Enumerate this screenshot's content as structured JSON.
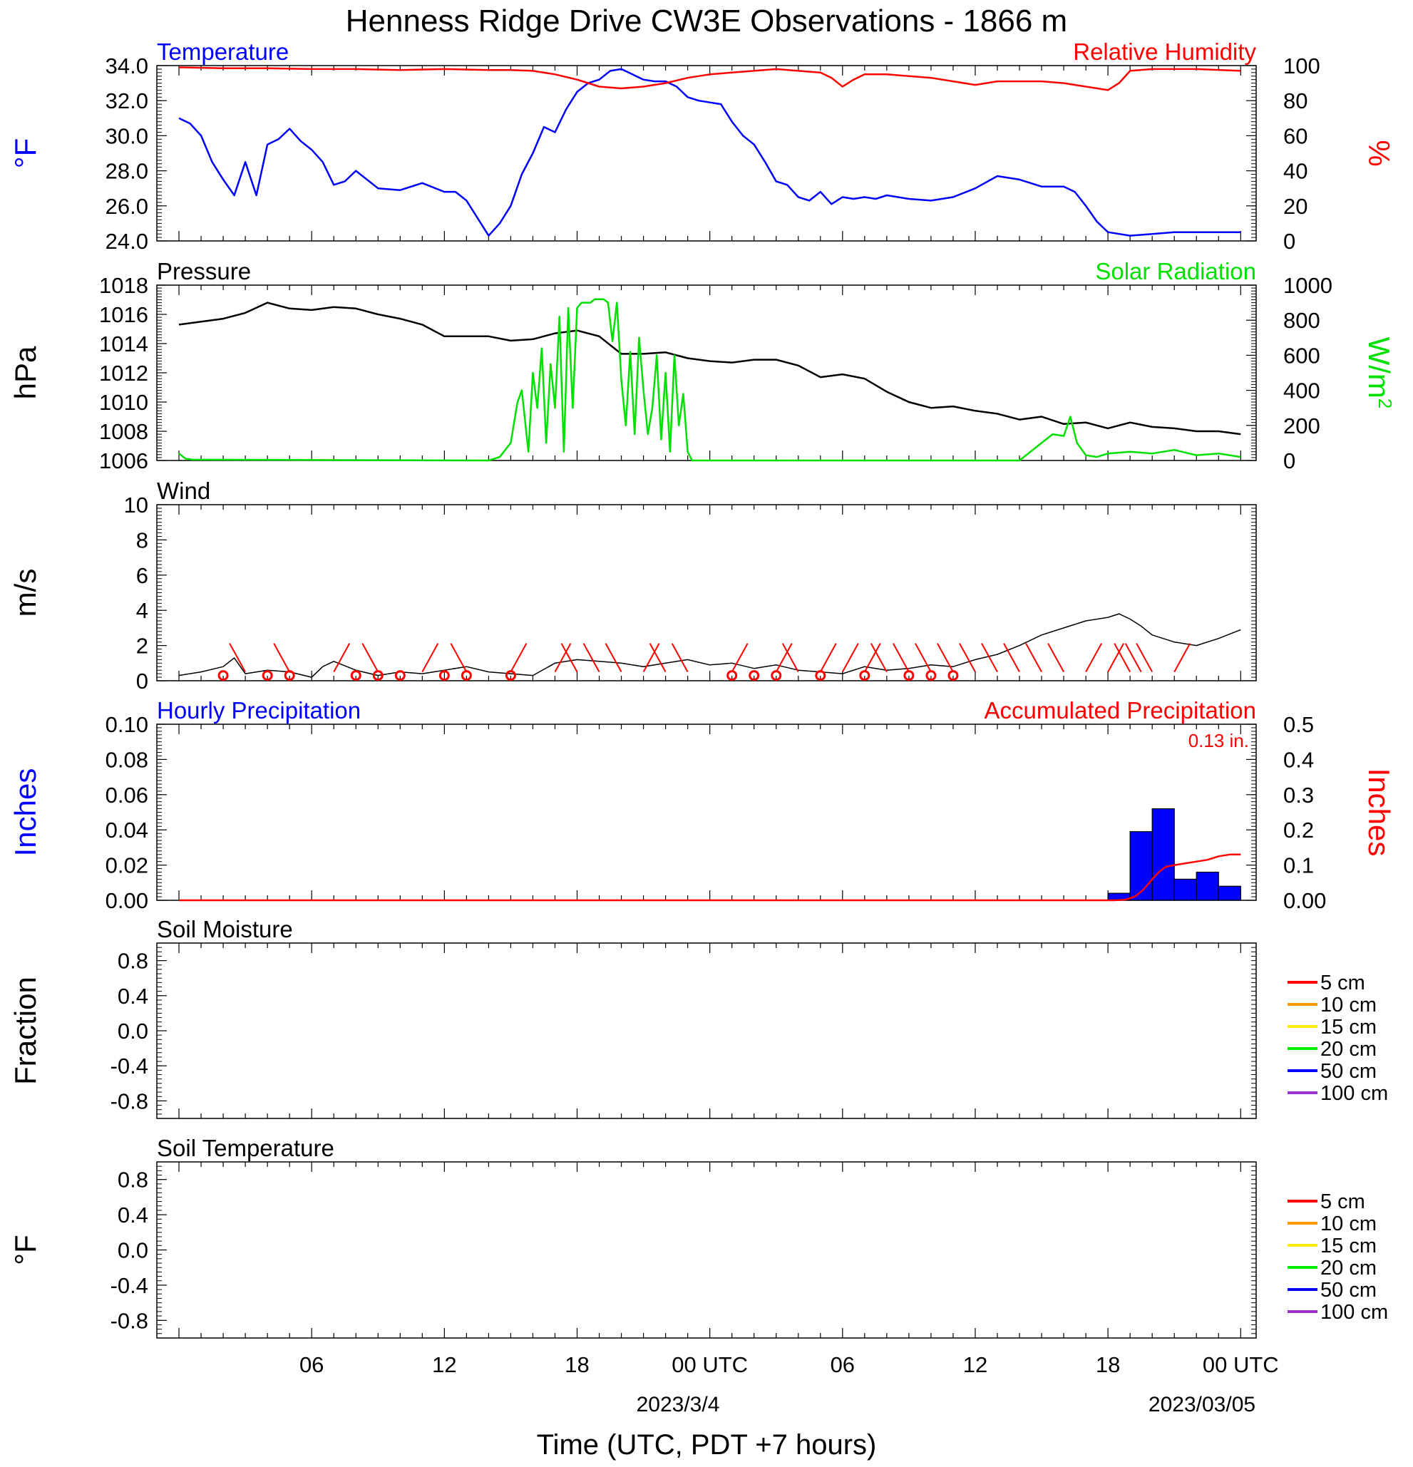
{
  "title": "Henness Ridge Drive CW3E Observations - 1866 m",
  "colors": {
    "blue": "#0000ff",
    "red": "#ff0000",
    "green": "#00e000",
    "black": "#000000"
  },
  "time_axis": {
    "ticks": [
      "06",
      "12",
      "18",
      "00 UTC",
      "06",
      "12",
      "18",
      "00 UTC"
    ],
    "tick_hours": [
      6,
      12,
      18,
      24,
      30,
      36,
      42,
      48
    ],
    "dates": [
      "2023/3/4",
      "2023/03/05"
    ],
    "label": "Time (UTC, PDT +7 hours)"
  },
  "chart_data": [
    {
      "type": "line",
      "panel": "temperature_humidity",
      "title_left": "Temperature",
      "title_right": "Relative Humidity",
      "ylabel_left": "°F",
      "ylabel_right": "%",
      "ylim_left": [
        24,
        34
      ],
      "ylim_right": [
        0,
        100
      ],
      "yticks_left": [
        "24.0",
        "26.0",
        "28.0",
        "30.0",
        "32.0",
        "34.0"
      ],
      "yticks_right": [
        "0",
        "20",
        "40",
        "60",
        "80",
        "100"
      ],
      "series": [
        {
          "name": "Temperature",
          "axis": "left",
          "color": "#0000ff",
          "x": [
            0,
            0.5,
            1,
            1.5,
            2,
            2.5,
            3,
            3.5,
            4,
            4.5,
            5,
            5.5,
            6,
            6.5,
            7,
            7.5,
            8,
            9,
            10,
            11,
            12,
            12.5,
            13,
            13.5,
            14,
            14.5,
            15,
            15.5,
            16,
            16.5,
            17,
            17.5,
            18,
            18.5,
            19,
            19.5,
            20,
            20.5,
            21,
            21.5,
            22,
            22.5,
            23,
            23.5,
            24,
            24.5,
            25,
            25.5,
            26,
            26.5,
            27,
            27.5,
            28,
            28.5,
            29,
            29.5,
            30,
            30.5,
            31,
            31.5,
            32,
            33,
            34,
            35,
            36,
            37,
            38,
            39,
            40,
            40.5,
            41,
            41.5,
            42,
            43,
            44,
            45,
            45.5,
            46,
            46.5,
            47,
            47.5,
            48
          ],
          "y": [
            31,
            30.7,
            30,
            28.5,
            27.5,
            26.6,
            28.5,
            26.6,
            29.5,
            29.8,
            30.4,
            29.7,
            29.2,
            28.5,
            27.2,
            27.4,
            28,
            27,
            26.9,
            27.3,
            26.8,
            26.8,
            26.3,
            25.3,
            24.3,
            25,
            26,
            27.8,
            29,
            30.5,
            30.2,
            31.5,
            32.5,
            33,
            33.2,
            33.7,
            33.8,
            33.5,
            33.2,
            33.1,
            33.1,
            32.8,
            32.2,
            32,
            31.9,
            31.8,
            30.8,
            30,
            29.5,
            28.5,
            27.4,
            27.2,
            26.5,
            26.3,
            26.8,
            26.1,
            26.5,
            26.4,
            26.5,
            26.4,
            26.6,
            26.4,
            26.3,
            26.5,
            27,
            27.7,
            27.5,
            27.1,
            27.1,
            26.8,
            26,
            25.1,
            24.5,
            24.3,
            24.4,
            24.5,
            24.5,
            24.5,
            24.5,
            24.5,
            24.5,
            24.5
          ]
        },
        {
          "name": "Relative Humidity",
          "axis": "right",
          "color": "#ff0000",
          "x": [
            0,
            2,
            4,
            6,
            8,
            10,
            12,
            14,
            15,
            16,
            17,
            18,
            19,
            20,
            21,
            22,
            23,
            24,
            25,
            26,
            27,
            28,
            29,
            29.5,
            30,
            30.5,
            31,
            32,
            33,
            34,
            35,
            36,
            37,
            38,
            39,
            40,
            41,
            42,
            42.5,
            43,
            44,
            46,
            48
          ],
          "y": [
            99,
            98.5,
            98.5,
            98,
            98,
            97.5,
            98,
            97.5,
            97.5,
            97,
            95,
            92,
            88,
            87,
            88,
            90,
            93,
            95,
            96,
            97,
            98,
            97,
            96,
            93,
            88,
            92,
            95,
            95,
            94,
            93,
            91,
            89,
            91,
            91,
            91,
            90,
            88,
            86,
            90,
            97,
            98,
            98,
            97
          ]
        }
      ]
    },
    {
      "type": "line",
      "panel": "pressure_solar",
      "title_left": "Pressure",
      "title_right": "Solar Radiation",
      "ylabel_left": "hPa",
      "ylabel_right": "W/m",
      "ylabel_right_sup": "2",
      "ylim_left": [
        1006,
        1018
      ],
      "ylim_right": [
        0,
        1000
      ],
      "yticks_left": [
        "1006",
        "1008",
        "1010",
        "1012",
        "1014",
        "1016",
        "1018"
      ],
      "yticks_right": [
        "0",
        "200",
        "400",
        "600",
        "800",
        "1000"
      ],
      "series": [
        {
          "name": "Pressure",
          "axis": "left",
          "color": "#000000",
          "x": [
            0,
            1,
            2,
            3,
            4,
            5,
            6,
            7,
            8,
            9,
            10,
            11,
            12,
            13,
            14,
            15,
            16,
            17,
            18,
            19,
            20,
            21,
            22,
            23,
            24,
            25,
            26,
            27,
            28,
            29,
            30,
            31,
            32,
            33,
            34,
            35,
            36,
            37,
            38,
            39,
            40,
            41,
            42,
            43,
            44,
            45,
            46,
            47,
            48
          ],
          "y": [
            1015.3,
            1015.5,
            1015.7,
            1016.1,
            1016.8,
            1016.4,
            1016.3,
            1016.5,
            1016.4,
            1016,
            1015.7,
            1015.3,
            1014.5,
            1014.5,
            1014.5,
            1014.2,
            1014.3,
            1014.7,
            1014.9,
            1014.5,
            1013.3,
            1013.3,
            1013.4,
            1013,
            1012.8,
            1012.7,
            1012.9,
            1012.9,
            1012.5,
            1011.7,
            1011.9,
            1011.6,
            1010.7,
            1010,
            1009.6,
            1009.7,
            1009.4,
            1009.2,
            1008.8,
            1009,
            1008.5,
            1008.6,
            1008.2,
            1008.6,
            1008.3,
            1008.2,
            1008,
            1008,
            1007.8
          ]
        },
        {
          "name": "Solar Radiation",
          "axis": "right",
          "color": "#00e000",
          "x": [
            0,
            0.3,
            0.6,
            14,
            14.5,
            15,
            15.3,
            15.5,
            15.8,
            16,
            16.2,
            16.4,
            16.6,
            16.8,
            17,
            17.2,
            17.4,
            17.6,
            17.8,
            18,
            18.2,
            18.4,
            18.6,
            18.8,
            19,
            19.2,
            19.4,
            19.6,
            19.8,
            20,
            20.2,
            20.4,
            20.6,
            20.8,
            21,
            21.2,
            21.4,
            21.6,
            21.8,
            22,
            22.2,
            22.4,
            22.6,
            22.8,
            23,
            23.2,
            23.4,
            23.6,
            24,
            24.5,
            30,
            37,
            38,
            39,
            39.5,
            40,
            40.3,
            40.6,
            41,
            41.5,
            42,
            43,
            44,
            45,
            46,
            47,
            48
          ],
          "y": [
            40,
            10,
            5,
            0,
            20,
            100,
            330,
            400,
            50,
            500,
            300,
            640,
            100,
            550,
            300,
            820,
            50,
            870,
            300,
            870,
            900,
            900,
            900,
            920,
            920,
            920,
            900,
            680,
            900,
            460,
            200,
            620,
            150,
            700,
            400,
            150,
            300,
            600,
            120,
            500,
            50,
            600,
            200,
            380,
            50,
            0,
            0,
            0,
            0,
            0,
            0,
            0,
            0,
            100,
            150,
            140,
            250,
            100,
            30,
            20,
            40,
            50,
            40,
            60,
            30,
            40,
            20
          ]
        }
      ]
    },
    {
      "type": "line",
      "panel": "wind",
      "title_left": "Wind",
      "ylabel_left": "m/s",
      "ylim_left": [
        0,
        10
      ],
      "yticks_left": [
        "0",
        "2",
        "4",
        "6",
        "8",
        "10"
      ],
      "series": [
        {
          "name": "Wind",
          "axis": "left",
          "color": "#000000",
          "x": [
            0,
            1,
            2,
            2.5,
            3,
            4,
            5,
            6,
            6.5,
            7,
            8,
            9,
            10,
            11,
            12,
            13,
            14,
            15,
            16,
            17,
            18,
            19,
            20,
            21,
            22,
            23,
            24,
            25,
            26,
            27,
            28,
            29,
            30,
            31,
            32,
            33,
            34,
            35,
            36,
            37,
            38,
            39,
            40,
            41,
            42,
            42.5,
            43,
            43.5,
            44,
            45,
            46,
            47,
            48
          ],
          "y": [
            0.3,
            0.5,
            0.8,
            1.3,
            0.4,
            0.6,
            0.5,
            0.2,
            0.8,
            1.1,
            0.6,
            0.3,
            0.5,
            0.4,
            0.6,
            0.8,
            0.5,
            0.4,
            0.3,
            1,
            1.2,
            1.1,
            1,
            0.8,
            1,
            1.2,
            0.9,
            1,
            0.7,
            0.9,
            0.6,
            0.5,
            0.4,
            0.8,
            0.6,
            0.7,
            0.9,
            0.8,
            1.2,
            1.5,
            2,
            2.6,
            3,
            3.4,
            3.6,
            3.8,
            3.5,
            3.1,
            2.6,
            2.2,
            2,
            2.4,
            2.9
          ]
        }
      ],
      "barbs_x": [
        3,
        5,
        7,
        9,
        11,
        13,
        15,
        17,
        18,
        19,
        20,
        21,
        22,
        23,
        25,
        27,
        28,
        29,
        30,
        31,
        32,
        33,
        34,
        35,
        36,
        37,
        38,
        39,
        40,
        41,
        42,
        43,
        43.5,
        44,
        45
      ],
      "calm_x": [
        2,
        4,
        5,
        8,
        9,
        10,
        12,
        13,
        15,
        25,
        26,
        27,
        29,
        31,
        33,
        34,
        35
      ]
    },
    {
      "type": "bar",
      "panel": "precipitation",
      "title_left": "Hourly Precipitation",
      "title_right": "Accumulated Precipitation",
      "total_label": "0.13 in.",
      "ylabel_left": "Inches",
      "ylabel_right": "Inches",
      "ylim_left": [
        0,
        0.1
      ],
      "ylim_right": [
        0,
        0.5
      ],
      "yticks_left": [
        "0.00",
        "0.02",
        "0.04",
        "0.06",
        "0.08",
        "0.10"
      ],
      "yticks_right": [
        "0.00",
        "0.1",
        "0.2",
        "0.3",
        "0.4",
        "0.5"
      ],
      "series": [
        {
          "name": "Hourly Precipitation",
          "axis": "left",
          "color": "#0000ff",
          "x_start": [
            42,
            43,
            44,
            45,
            46,
            47
          ],
          "values": [
            0.004,
            0.039,
            0.052,
            0.012,
            0.016,
            0.008
          ]
        },
        {
          "name": "Accumulated Precipitation",
          "axis": "right",
          "color": "#ff0000",
          "x": [
            0,
            42.3,
            42.8,
            43.2,
            43.6,
            44,
            44.3,
            44.6,
            45,
            45.5,
            46,
            46.5,
            47,
            47.5,
            48
          ],
          "y": [
            0,
            0,
            0.002,
            0.01,
            0.03,
            0.06,
            0.08,
            0.095,
            0.1,
            0.105,
            0.11,
            0.115,
            0.125,
            0.13,
            0.13
          ]
        }
      ]
    },
    {
      "type": "line",
      "panel": "soil_moisture",
      "title_left": "Soil Moisture",
      "ylabel_left": "Fraction",
      "ylim_left": [
        -1,
        1
      ],
      "yticks_left": [
        "-0.8",
        "-0.4",
        "0.0",
        "0.4",
        "0.8"
      ],
      "legend": [
        {
          "label": "5 cm",
          "color": "#ff0000"
        },
        {
          "label": "10 cm",
          "color": "#ff9900"
        },
        {
          "label": "15 cm",
          "color": "#ffee00"
        },
        {
          "label": "20 cm",
          "color": "#00ee00"
        },
        {
          "label": "50 cm",
          "color": "#0000ff"
        },
        {
          "label": "100 cm",
          "color": "#9933cc"
        }
      ],
      "series": []
    },
    {
      "type": "line",
      "panel": "soil_temperature",
      "title_left": "Soil Temperature",
      "ylabel_left": "°F",
      "ylim_left": [
        -1,
        1
      ],
      "yticks_left": [
        "-0.8",
        "-0.4",
        "0.0",
        "0.4",
        "0.8"
      ],
      "legend": [
        {
          "label": "5 cm",
          "color": "#ff0000"
        },
        {
          "label": "10 cm",
          "color": "#ff9900"
        },
        {
          "label": "15 cm",
          "color": "#ffee00"
        },
        {
          "label": "20 cm",
          "color": "#00ee00"
        },
        {
          "label": "50 cm",
          "color": "#0000ff"
        },
        {
          "label": "100 cm",
          "color": "#9933cc"
        }
      ],
      "series": []
    }
  ]
}
